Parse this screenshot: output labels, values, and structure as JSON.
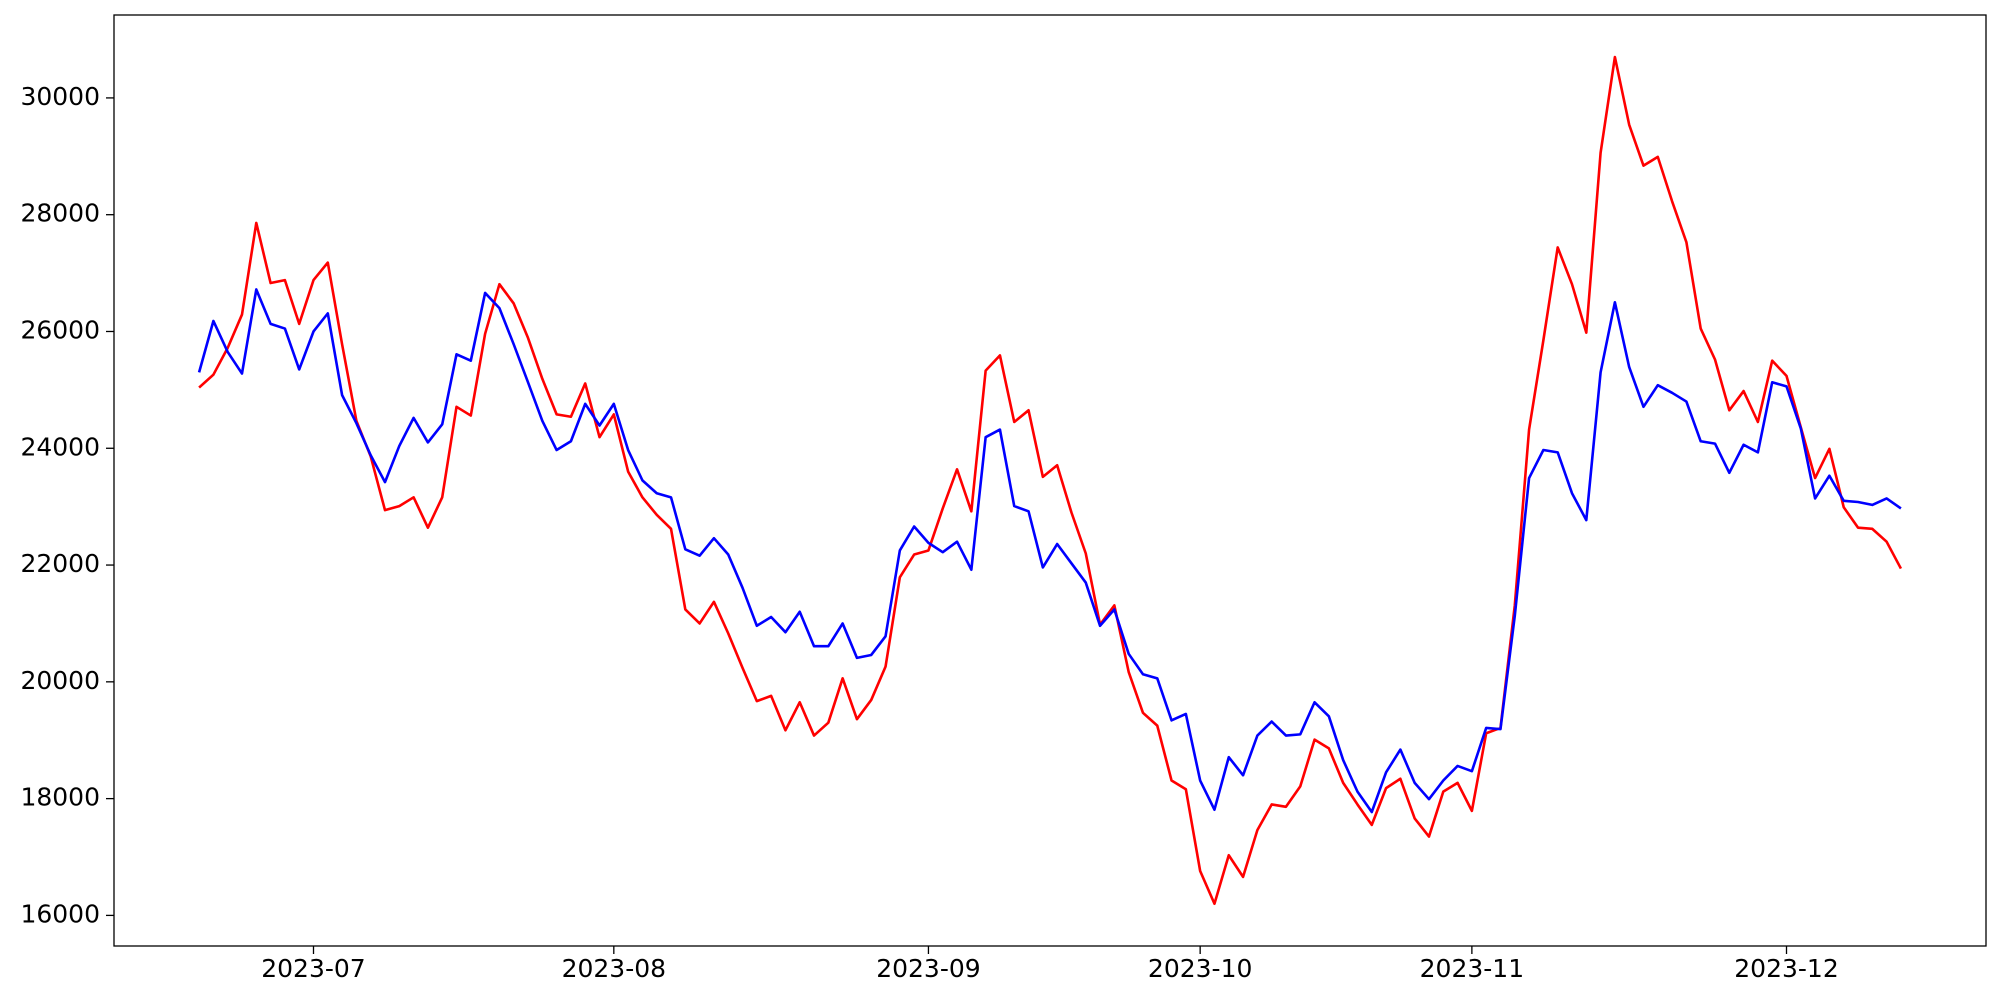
{
  "chart_data": {
    "type": "line",
    "categories": [
      null,
      null,
      null,
      null,
      null,
      null,
      null,
      null,
      "2023-07",
      null,
      null,
      null,
      null,
      null,
      null,
      null,
      null,
      null,
      null,
      null,
      null,
      null,
      null,
      null,
      null,
      null,
      null,
      null,
      null,
      "2023-08",
      null,
      null,
      null,
      null,
      null,
      null,
      null,
      null,
      null,
      null,
      null,
      null,
      null,
      null,
      null,
      null,
      null,
      null,
      null,
      null,
      null,
      "2023-09",
      null,
      null,
      null,
      null,
      null,
      null,
      null,
      null,
      null,
      null,
      null,
      null,
      null,
      null,
      null,
      null,
      null,
      null,
      "2023-10",
      null,
      null,
      null,
      null,
      null,
      null,
      null,
      null,
      null,
      null,
      null,
      null,
      null,
      null,
      null,
      null,
      null,
      null,
      "2023-11",
      null,
      null,
      null,
      null,
      null,
      null,
      null,
      null,
      null,
      null,
      null,
      null,
      null,
      null,
      null,
      null,
      null,
      null,
      null,
      null,
      null,
      "2023-12",
      null,
      null,
      null,
      null,
      null,
      null,
      null,
      null
    ],
    "series": [
      {
        "color": "#ff0000",
        "values": [
          25040,
          25260,
          25720,
          26290,
          27860,
          26830,
          26880,
          26130,
          26880,
          27180,
          25780,
          24470,
          23860,
          22940,
          23010,
          23160,
          22640,
          23160,
          24710,
          24560,
          25960,
          26810,
          26480,
          25890,
          25190,
          24580,
          24540,
          25110,
          24190,
          24580,
          23600,
          23160,
          22860,
          22620,
          21240,
          21000,
          21370,
          20830,
          20240,
          19670,
          19760,
          19170,
          19650,
          19080,
          19300,
          20060,
          19360,
          19690,
          20260,
          21790,
          22180,
          22250,
          22970,
          23640,
          22920,
          25330,
          25590,
          24450,
          24650,
          23510,
          23710,
          22900,
          22200,
          20980,
          21310,
          20170,
          19470,
          19250,
          18310,
          18160,
          16760,
          16200,
          17030,
          16660,
          17460,
          17900,
          17860,
          18210,
          19010,
          18860,
          18270,
          17900,
          17550,
          18180,
          18340,
          17660,
          17350,
          18120,
          18270,
          17790,
          19120,
          19210,
          21310,
          24320,
          25850,
          27440,
          26810,
          25980,
          29060,
          30700,
          29540,
          28840,
          28990,
          28230,
          27530,
          26050,
          25520,
          24650,
          24980,
          24450,
          25500,
          25240,
          24360,
          23490,
          23990,
          22990,
          22640,
          22620,
          22400,
          21940
        ]
      },
      {
        "color": "#0000ff",
        "values": [
          25300,
          26180,
          25650,
          25280,
          26720,
          26130,
          26050,
          25350,
          26000,
          26310,
          24910,
          24430,
          23880,
          23420,
          24040,
          24520,
          24100,
          24410,
          25610,
          25500,
          26660,
          26400,
          25780,
          25130,
          24470,
          23970,
          24120,
          24760,
          24390,
          24760,
          23970,
          23450,
          23230,
          23160,
          22270,
          22160,
          22460,
          22180,
          21610,
          20960,
          21110,
          20850,
          21200,
          20610,
          20610,
          21000,
          20410,
          20460,
          20780,
          22250,
          22660,
          22380,
          22220,
          22400,
          21920,
          24190,
          24320,
          23010,
          22920,
          21960,
          22360,
          22030,
          21700,
          20960,
          21240,
          20480,
          20130,
          20060,
          19340,
          19450,
          18310,
          17810,
          18710,
          18400,
          19080,
          19320,
          19080,
          19100,
          19650,
          19410,
          18660,
          18120,
          17770,
          18450,
          18840,
          18270,
          17990,
          18310,
          18560,
          18470,
          19210,
          19190,
          21130,
          23490,
          23970,
          23930,
          23230,
          22770,
          25300,
          26500,
          25390,
          24710,
          25080,
          24950,
          24800,
          24120,
          24080,
          23580,
          24060,
          23930,
          25130,
          25060,
          24340,
          23140,
          23530,
          23100,
          23080,
          23030,
          23140,
          22970
        ]
      }
    ],
    "ylim": [
      15476,
      31420
    ],
    "yticks": [
      16000,
      18000,
      20000,
      22000,
      24000,
      26000,
      28000,
      30000
    ],
    "grid": false
  }
}
